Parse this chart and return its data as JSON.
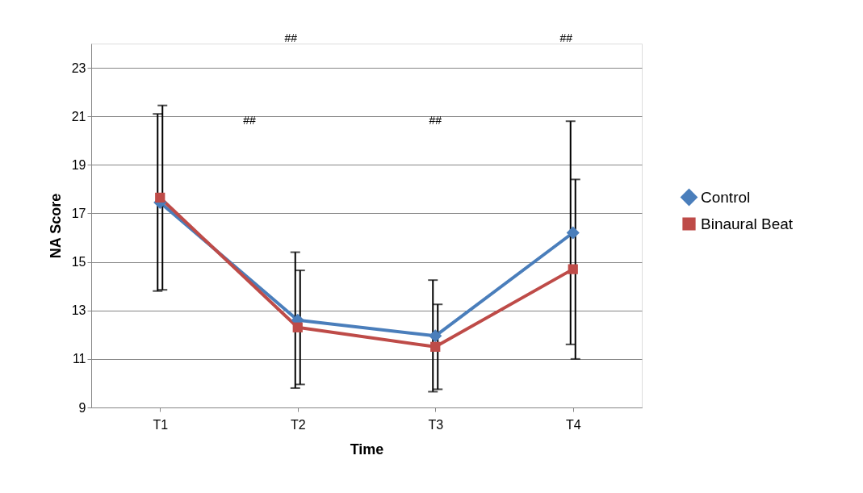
{
  "chart_data": {
    "type": "line",
    "xlabel": "Time",
    "ylabel": "NA Score",
    "categories": [
      "T1",
      "T2",
      "T3",
      "T4"
    ],
    "series": [
      {
        "name": "Control",
        "color": "#4a7ebb",
        "marker": "diamond",
        "values": [
          17.45,
          12.6,
          11.95,
          16.2
        ],
        "errors": [
          [
            13.8,
            21.1
          ],
          [
            9.8,
            15.4
          ],
          [
            9.65,
            14.25
          ],
          [
            11.6,
            20.8
          ]
        ]
      },
      {
        "name": "Binaural Beat",
        "color": "#be4b48",
        "marker": "square",
        "values": [
          17.65,
          12.3,
          11.5,
          14.7
        ],
        "errors": [
          [
            13.85,
            21.45
          ],
          [
            9.95,
            14.65
          ],
          [
            9.75,
            13.25
          ],
          [
            11.0,
            18.4
          ]
        ]
      }
    ],
    "ylim": [
      9,
      24
    ],
    "yticks": [
      9,
      11,
      13,
      15,
      17,
      19,
      21,
      23
    ],
    "grid": "y",
    "legend": "right",
    "annotations": [
      "##",
      "##",
      "##",
      "##"
    ]
  }
}
